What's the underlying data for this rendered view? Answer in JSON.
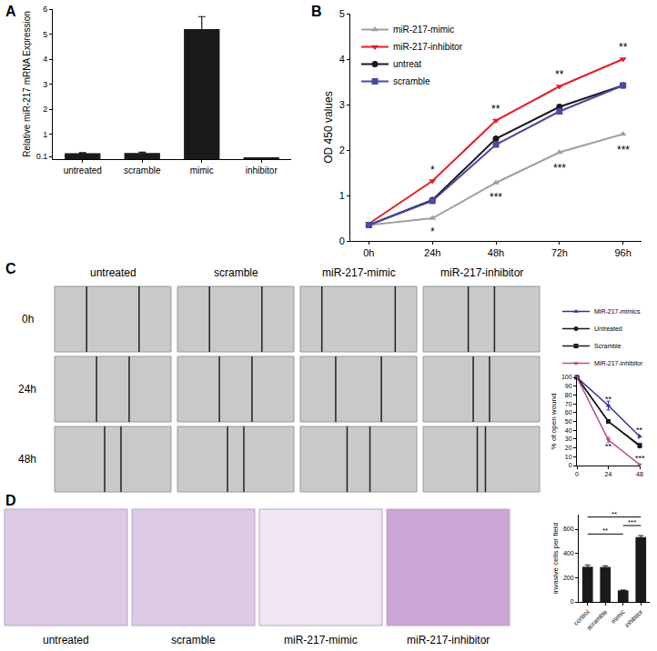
{
  "figure": {
    "panel_labels": [
      "A",
      "B",
      "C",
      "D"
    ],
    "wound_images": {
      "columns": [
        "untreated",
        "scramble",
        "miR-217-mimic",
        "miR-217-inhibitor"
      ],
      "rows": [
        "0h",
        "24h",
        "48h"
      ]
    },
    "invasion_images": {
      "labels": [
        "untreated",
        "scramble",
        "miR-217-mimic",
        "miR-217-inhibitor"
      ]
    }
  },
  "chart_data": [
    {
      "type": "bar",
      "y_label": "Relative miR-217 mRNA Expression",
      "categories": [
        "untreated",
        "scramble",
        "mimic",
        "inhibitor"
      ],
      "values": [
        0.24,
        0.245,
        5.2,
        0.045
      ],
      "errors": [
        0.02,
        0.03,
        0.5,
        0.004
      ],
      "color": "#1a1a1a",
      "ylim": [
        0,
        6
      ],
      "yticks": [
        0.1,
        1,
        2,
        3,
        4,
        5,
        6
      ]
    },
    {
      "type": "line",
      "y_label": "OD 450 values",
      "categories": [
        "0h",
        "24h",
        "48h",
        "72h",
        "96h"
      ],
      "series": [
        {
          "name": "miR-217-mimic",
          "color": "#a0a0a0",
          "marker": "triangle-up",
          "values": [
            0.35,
            0.5,
            1.28,
            1.95,
            2.35
          ]
        },
        {
          "name": "miR-217-inhibitor",
          "color": "#e0202a",
          "marker": "triangle-down",
          "values": [
            0.38,
            1.32,
            2.65,
            3.4,
            4.0
          ]
        },
        {
          "name": "untreat",
          "color": "#1a1a1a",
          "marker": "circle",
          "values": [
            0.35,
            0.9,
            2.25,
            2.95,
            3.42
          ]
        },
        {
          "name": "scramble",
          "color": "#4a4aa0",
          "marker": "square",
          "values": [
            0.35,
            0.88,
            2.12,
            2.85,
            3.42
          ]
        }
      ],
      "ylim": [
        0,
        5
      ],
      "yticks": [
        0,
        1,
        2,
        3,
        4,
        5
      ],
      "legend": "upper left",
      "annotations": [
        {
          "x": "24h",
          "y": 0.2,
          "text": "*"
        },
        {
          "x": "48h",
          "y": 0.95,
          "text": "***"
        },
        {
          "x": "72h",
          "y": 1.6,
          "text": "***"
        },
        {
          "x": "96h",
          "y": 2.0,
          "text": "***"
        },
        {
          "x": "24h",
          "y": 1.55,
          "text": "*"
        },
        {
          "x": "48h",
          "y": 2.9,
          "text": "**"
        },
        {
          "x": "72h",
          "y": 3.65,
          "text": "**"
        },
        {
          "x": "96h",
          "y": 4.25,
          "text": "**"
        }
      ]
    },
    {
      "type": "line",
      "y_label": "% of open wound",
      "x": [
        0,
        24,
        48
      ],
      "xlim": [
        0,
        48
      ],
      "xticks": [
        0,
        24,
        48
      ],
      "ylim": [
        0,
        100
      ],
      "yticks": [
        0,
        10,
        20,
        30,
        40,
        50,
        60,
        70,
        80,
        90,
        100
      ],
      "series": [
        {
          "name": "MiR-217-mimics",
          "color": "#3030a0",
          "marker": "triangle-up",
          "values": [
            100,
            68,
            33
          ],
          "errors": [
            0,
            5,
            2
          ]
        },
        {
          "name": "Untreated",
          "color": "#1a1a1a",
          "marker": "circle",
          "values": [
            100,
            50,
            22
          ],
          "errors": [
            0,
            2,
            1.5
          ]
        },
        {
          "name": "Scramble",
          "color": "#1a1a1a",
          "marker": "square",
          "values": [
            100,
            50,
            23
          ],
          "errors": [
            0,
            2,
            1.5
          ]
        },
        {
          "name": "MiR-217-inhibitor",
          "color": "#b0508a",
          "marker": "triangle-down",
          "values": [
            100,
            29,
            1
          ],
          "errors": [
            0,
            3,
            1
          ]
        }
      ],
      "legend": "upper right",
      "annotations": [
        {
          "x": 24,
          "y": 75,
          "text": "**"
        },
        {
          "x": 24,
          "y": 22,
          "text": "**"
        },
        {
          "x": 48,
          "y": 40,
          "text": "**"
        },
        {
          "x": 48,
          "y": 8,
          "text": "***"
        }
      ]
    },
    {
      "type": "bar",
      "y_label": "invasive cells per field",
      "categories": [
        "control",
        "scramble",
        "mimic",
        "inhibitor"
      ],
      "values": [
        290,
        288,
        95,
        535
      ],
      "errors": [
        15,
        10,
        3,
        12
      ],
      "color": "#1a1a1a",
      "ylim": [
        0,
        720
      ],
      "yticks": [
        0,
        200,
        400,
        600
      ],
      "annotations": [
        {
          "from": "control",
          "to": "inhibitor",
          "y": 700,
          "text": "**"
        },
        {
          "from": "control",
          "to": "mimic",
          "y": 560,
          "text": "**"
        },
        {
          "from": "mimic",
          "to": "inhibitor",
          "y": 630,
          "text": "***"
        }
      ]
    }
  ]
}
